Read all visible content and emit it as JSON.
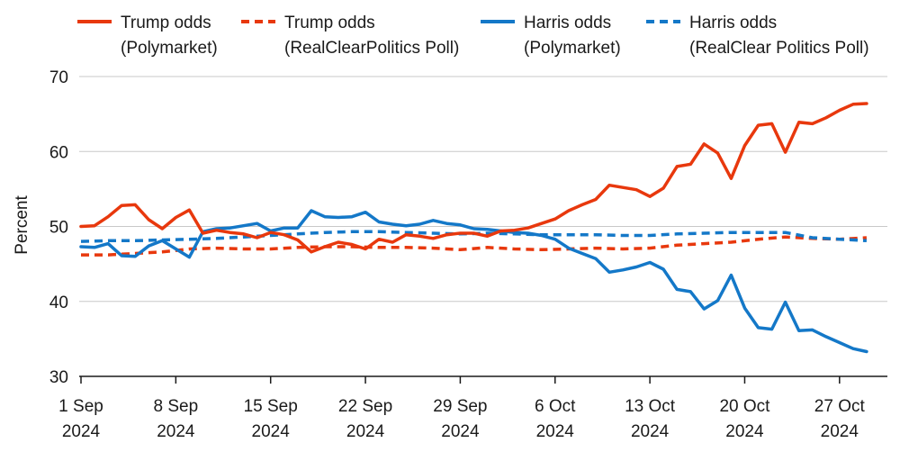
{
  "chart_data": {
    "type": "line",
    "title": "",
    "xlabel": "",
    "ylabel": "Percent",
    "ylim": [
      30,
      70
    ],
    "yticks": [
      30,
      40,
      50,
      60,
      70
    ],
    "grid": "horizontal",
    "legend_position": "top",
    "x_start": "2024-09-01",
    "x_end": "2024-10-31",
    "xticks": [
      {
        "day": 0,
        "line1": "1 Sep",
        "line2": "2024"
      },
      {
        "day": 7,
        "line1": "8 Sep",
        "line2": "2024"
      },
      {
        "day": 14,
        "line1": "15 Sep",
        "line2": "2024"
      },
      {
        "day": 21,
        "line1": "22 Sep",
        "line2": "2024"
      },
      {
        "day": 28,
        "line1": "29 Sep",
        "line2": "2024"
      },
      {
        "day": 35,
        "line1": "6 Oct",
        "line2": "2024"
      },
      {
        "day": 42,
        "line1": "13 Oct",
        "line2": "2024"
      },
      {
        "day": 49,
        "line1": "20 Oct",
        "line2": "2024"
      },
      {
        "day": 56,
        "line1": "27 Oct",
        "line2": "2024"
      }
    ],
    "series": [
      {
        "name": "Trump odds (Polymarket)",
        "legend_line1": "Trump odds",
        "legend_line2": "(Polymarket)",
        "color": "#e8380d",
        "style": "solid",
        "x": [
          0,
          1,
          2,
          3,
          4,
          5,
          6,
          7,
          8,
          9,
          10,
          11,
          12,
          13,
          14,
          15,
          16,
          17,
          18,
          19,
          20,
          21,
          22,
          23,
          24,
          25,
          26,
          27,
          28,
          29,
          30,
          31,
          32,
          33,
          34,
          35,
          36,
          37,
          38,
          39,
          40,
          41,
          42,
          43,
          44,
          45,
          46,
          47,
          48,
          49,
          50,
          51,
          52,
          53,
          54,
          55,
          56,
          57,
          58
        ],
        "values": [
          50.0,
          50.1,
          51.3,
          52.8,
          52.9,
          50.9,
          49.7,
          51.2,
          52.2,
          49.1,
          49.5,
          49.2,
          49.0,
          48.5,
          49.2,
          48.9,
          48.2,
          46.6,
          47.3,
          47.9,
          47.6,
          47.0,
          48.3,
          47.9,
          48.9,
          48.7,
          48.4,
          48.9,
          49.1,
          49.1,
          48.7,
          49.4,
          49.5,
          49.8,
          50.4,
          51.0,
          52.1,
          52.9,
          53.6,
          55.5,
          55.2,
          54.9,
          54.0,
          55.1,
          58.0,
          58.3,
          61.0,
          59.8,
          56.4,
          60.8,
          63.5,
          63.7,
          59.9,
          63.9,
          63.7,
          64.5,
          65.5,
          66.3,
          66.4
        ]
      },
      {
        "name": "Trump odds (RealClearPolitics Poll)",
        "legend_line1": "Trump odds",
        "legend_line2": "(RealClearPolitics Poll)",
        "color": "#e8380d",
        "style": "dashed",
        "x": [
          0,
          2,
          4,
          6,
          8,
          10,
          12,
          14,
          16,
          18,
          20,
          22,
          24,
          26,
          28,
          30,
          32,
          34,
          36,
          38,
          40,
          42,
          44,
          46,
          48,
          50,
          52,
          54,
          56,
          58
        ],
        "values": [
          46.2,
          46.2,
          46.4,
          46.6,
          47.0,
          47.1,
          47.0,
          47.0,
          47.2,
          47.3,
          47.3,
          47.2,
          47.2,
          47.1,
          46.9,
          47.2,
          47.0,
          46.9,
          47.0,
          47.1,
          47.0,
          47.1,
          47.5,
          47.7,
          47.9,
          48.3,
          48.6,
          48.4,
          48.3,
          48.5
        ]
      },
      {
        "name": "Harris odds (Polymarket)",
        "legend_line1": "Harris odds",
        "legend_line2": "(Polymarket)",
        "color": "#1478c8",
        "style": "solid",
        "x": [
          0,
          1,
          2,
          3,
          4,
          5,
          6,
          7,
          8,
          9,
          10,
          11,
          12,
          13,
          14,
          15,
          16,
          17,
          18,
          19,
          20,
          21,
          22,
          23,
          24,
          25,
          26,
          27,
          28,
          29,
          30,
          31,
          32,
          33,
          34,
          35,
          36,
          37,
          38,
          39,
          40,
          41,
          42,
          43,
          44,
          45,
          46,
          47,
          48,
          49,
          50,
          51,
          52,
          53,
          54,
          55,
          56,
          57,
          58
        ],
        "values": [
          47.3,
          47.2,
          47.7,
          46.1,
          46.0,
          47.4,
          48.1,
          47.0,
          45.9,
          49.3,
          49.7,
          49.8,
          50.1,
          50.4,
          49.4,
          49.8,
          49.8,
          52.1,
          51.3,
          51.2,
          51.3,
          51.9,
          50.6,
          50.3,
          50.1,
          50.3,
          50.8,
          50.4,
          50.2,
          49.7,
          49.6,
          49.4,
          49.2,
          49.1,
          48.8,
          48.3,
          47.1,
          46.4,
          45.7,
          43.9,
          44.2,
          44.6,
          45.2,
          44.3,
          41.6,
          41.3,
          39.0,
          40.1,
          43.5,
          39.1,
          36.5,
          36.3,
          39.9,
          36.1,
          36.2,
          35.3,
          34.5,
          33.7,
          33.3
        ]
      },
      {
        "name": "Harris odds (RealClear Politics Poll)",
        "legend_line1": "Harris odds",
        "legend_line2": "(RealClear Politics Poll)",
        "color": "#1478c8",
        "style": "dashed",
        "x": [
          0,
          2,
          4,
          6,
          8,
          10,
          12,
          14,
          16,
          18,
          20,
          22,
          24,
          26,
          28,
          30,
          32,
          34,
          36,
          38,
          40,
          42,
          44,
          46,
          48,
          50,
          52,
          54,
          56,
          58
        ],
        "values": [
          48.0,
          48.1,
          48.1,
          48.2,
          48.3,
          48.4,
          48.6,
          48.8,
          49.0,
          49.2,
          49.3,
          49.3,
          49.2,
          49.1,
          49.0,
          49.1,
          49.0,
          48.9,
          48.9,
          48.9,
          48.8,
          48.8,
          49.0,
          49.1,
          49.2,
          49.2,
          49.2,
          48.5,
          48.3,
          48.1
        ]
      }
    ]
  }
}
